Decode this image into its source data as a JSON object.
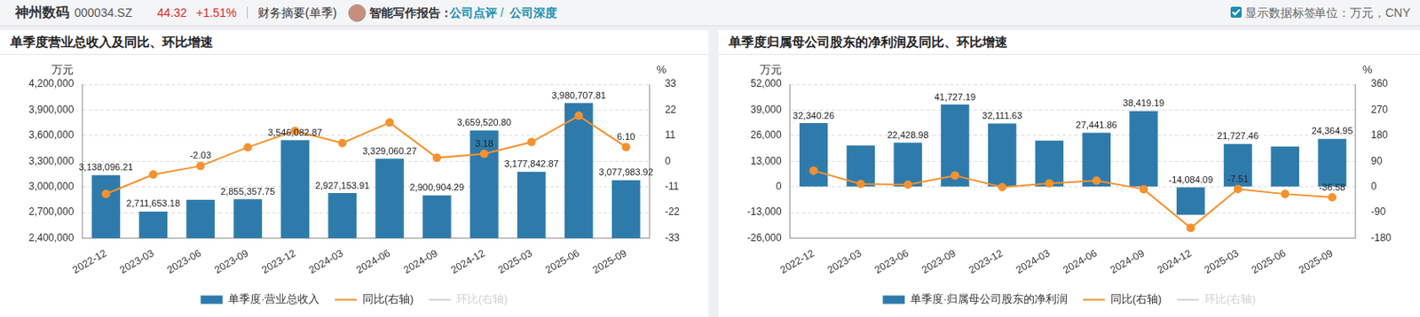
{
  "header": {
    "name": "神州数码",
    "code": "000034.SZ",
    "price": "44.32",
    "change": "+1.51%",
    "section": "财务摘要(单季)",
    "report_label": "智能写作报告：",
    "report_links": [
      "公司点评",
      "公司深度"
    ],
    "report_separator": "/",
    "checkbox": "显示数据标签",
    "unit": "单位：万元，CNY"
  },
  "chart_data": [
    {
      "type": "bar",
      "title": "单季度营业总收入及同比、环比增速",
      "y_label": "万元",
      "y2_label": "%",
      "categories": [
        "2022-12",
        "2023-03",
        "2023-06",
        "2023-09",
        "2023-12",
        "2024-03",
        "2024-06",
        "2024-09",
        "2024-12",
        "2025-03",
        "2025-06",
        "2025-09"
      ],
      "series": [
        {
          "name": "单季度·营业总收入",
          "type": "bar",
          "color": "#2e7bab",
          "values": [
            3138096.21,
            2711653.18,
            2850000,
            2855357.75,
            3546082.87,
            2927153.91,
            3329060.27,
            2900904.29,
            3659520.8,
            3177842.87,
            3980707.81,
            3077983.92
          ],
          "value_labels": [
            "3,138,096.21",
            "2,711,653.18",
            null,
            "2,855,357.75",
            "3,546,082.87",
            "2,927,153.91",
            "3,329,060.27",
            "2,900,904.29",
            "3,659,520.80",
            "3,177,842.87",
            "3,980,707.81",
            "3,077,983.92"
          ]
        },
        {
          "name": "同比(右轴)",
          "type": "line",
          "axis": "y2",
          "color": "#f5922f",
          "marker": "circle",
          "values": [
            -14,
            -5.7,
            -2.03,
            6,
            13,
            7.8,
            16.6,
            1.5,
            3.18,
            8.2,
            19.5,
            6.1
          ],
          "value_labels": [
            null,
            null,
            "-2.03",
            null,
            null,
            null,
            null,
            null,
            "3.18",
            null,
            null,
            "6.10"
          ]
        },
        {
          "name": "环比(右轴)",
          "type": "line",
          "axis": "y2",
          "color": "#d0d0d0",
          "marker": "circle",
          "values": [
            null,
            null,
            null,
            null,
            null,
            null,
            null,
            null,
            null,
            null,
            null,
            null
          ]
        }
      ],
      "ylim": [
        2400000,
        4200000
      ],
      "yticks": [
        {
          "value": 2400000,
          "label": "2,400,000"
        },
        {
          "value": 2700000,
          "label": "2,700,000"
        },
        {
          "value": 3000000,
          "label": "3,000,000"
        },
        {
          "value": 3300000,
          "label": "3,300,000"
        },
        {
          "value": 3600000,
          "label": "3,600,000"
        },
        {
          "value": 3900000,
          "label": "3,900,000"
        },
        {
          "value": 4200000,
          "label": "4,200,000"
        }
      ],
      "y2lim": [
        -33,
        33
      ],
      "y2ticks": [
        -33,
        -22,
        -11,
        0,
        11,
        22,
        33
      ],
      "grid": true,
      "legend": "bottom",
      "data_labels": true
    },
    {
      "type": "bar",
      "title": "单季度归属母公司股东的净利润及同比、环比增速",
      "y_label": "万元",
      "y2_label": "%",
      "categories": [
        "2022-12",
        "2023-03",
        "2023-06",
        "2023-09",
        "2023-12",
        "2024-03",
        "2024-06",
        "2024-09",
        "2024-12",
        "2025-03",
        "2025-06",
        "2025-09"
      ],
      "series": [
        {
          "name": "单季度·归属母公司股东的净利润",
          "type": "bar",
          "color": "#2e7bab",
          "values": [
            32340.26,
            21000,
            22428.98,
            41727.19,
            32111.63,
            23500,
            27441.86,
            38419.19,
            -14084.09,
            21727.46,
            20500,
            24364.95
          ],
          "value_labels": [
            "32,340.26",
            null,
            "22,428.98",
            "41,727.19",
            "32,111.63",
            null,
            "27,441.86",
            "38,419.19",
            "-14,084.09",
            "21,727.46",
            null,
            "24,364.95"
          ]
        },
        {
          "name": "同比(右轴)",
          "type": "line",
          "axis": "y2",
          "color": "#f5922f",
          "marker": "circle",
          "values": [
            57,
            10,
            8,
            40,
            -1,
            12,
            22,
            -8,
            -144,
            -7.51,
            -25,
            -36.58
          ],
          "value_labels": [
            null,
            null,
            null,
            null,
            null,
            null,
            null,
            null,
            null,
            "-7.51",
            null,
            "-36.58"
          ]
        },
        {
          "name": "环比(右轴)",
          "type": "line",
          "axis": "y2",
          "color": "#d0d0d0",
          "marker": "circle",
          "values": [
            null,
            null,
            null,
            null,
            null,
            null,
            null,
            null,
            null,
            null,
            null,
            null
          ]
        }
      ],
      "ylim": [
        -26000,
        52000
      ],
      "yticks": [
        {
          "value": -26000,
          "label": "-26,000"
        },
        {
          "value": -13000,
          "label": "-13,000"
        },
        0,
        {
          "value": 13000,
          "label": "13,000"
        },
        {
          "value": 26000,
          "label": "26,000"
        },
        {
          "value": 39000,
          "label": "39,000"
        },
        {
          "value": 52000,
          "label": "52,000"
        }
      ],
      "y2lim": [
        -180,
        360
      ],
      "y2ticks": [
        -180,
        -90,
        0,
        90,
        180,
        270,
        360
      ],
      "grid": true,
      "legend": "bottom",
      "data_labels": true
    }
  ]
}
